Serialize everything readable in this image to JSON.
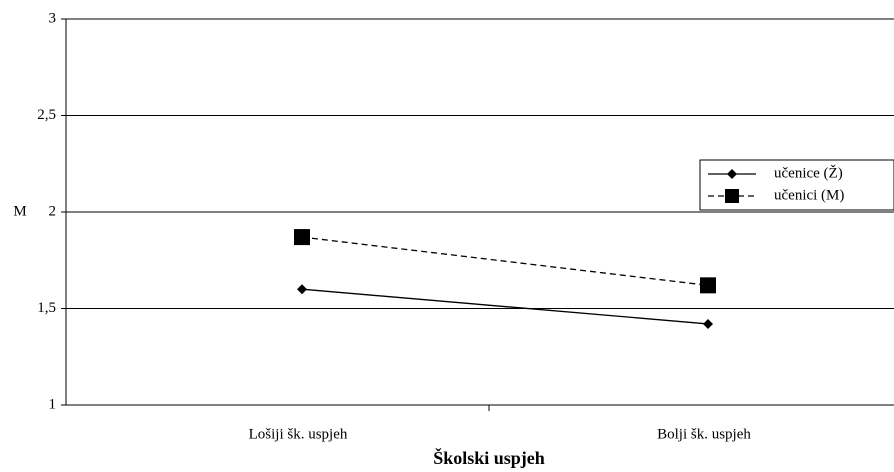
{
  "chart_data": {
    "type": "line",
    "x_label": "Školski uspjeh",
    "y_label": "M",
    "categories": [
      "Lošiji šk. uspjeh",
      "Bolji šk. uspjeh"
    ],
    "series": [
      {
        "name": "učenice (Ž)",
        "color": "#000000",
        "marker": "diamond",
        "dash": "solid",
        "values": [
          1.6,
          1.42
        ]
      },
      {
        "name": "učenici (M)",
        "color": "#000000",
        "marker": "square",
        "dash": "dashed",
        "values": [
          1.87,
          1.62
        ]
      }
    ],
    "ylim": [
      1,
      3
    ],
    "yticks": [
      1,
      {
        "value": 1.5,
        "label": "1,5"
      },
      2,
      {
        "value": 2.5,
        "label": "2,5"
      },
      3
    ],
    "grid": true,
    "legend": "right"
  }
}
